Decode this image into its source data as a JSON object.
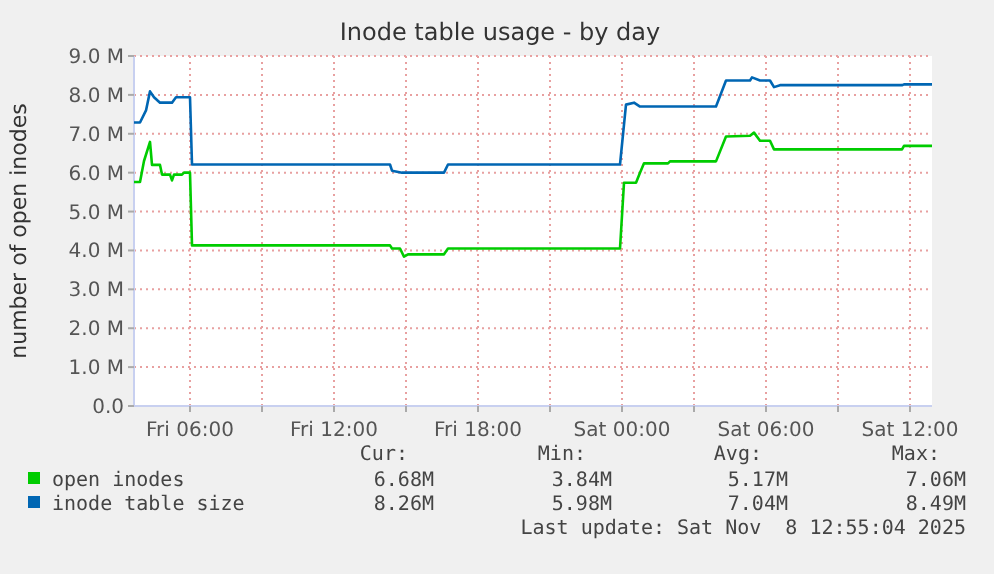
{
  "chart_data": {
    "type": "line",
    "title": "Inode table usage - by day",
    "ylabel": "number of open inodes",
    "xlim": [
      "2025-11-07T03:40",
      "2025-11-08T12:55"
    ],
    "ylim": [
      0,
      9
    ],
    "xticks": [
      {
        "value": "2025-11-07T06:00",
        "label": "Fri 06:00"
      },
      {
        "value": "2025-11-07T09:00",
        "label": null
      },
      {
        "value": "2025-11-07T12:00",
        "label": "Fri 12:00"
      },
      {
        "value": "2025-11-07T15:00",
        "label": null
      },
      {
        "value": "2025-11-07T18:00",
        "label": "Fri 18:00"
      },
      {
        "value": "2025-11-07T21:00",
        "label": null
      },
      {
        "value": "2025-11-08T00:00",
        "label": "Sat 00:00"
      },
      {
        "value": "2025-11-08T03:00",
        "label": null
      },
      {
        "value": "2025-11-08T06:00",
        "label": "Sat 06:00"
      },
      {
        "value": "2025-11-08T09:00",
        "label": null
      },
      {
        "value": "2025-11-08T12:00",
        "label": "Sat 12:00"
      }
    ],
    "yticks": [
      {
        "value": 0,
        "label": "0.0"
      },
      {
        "value": 1,
        "label": "1.0 M"
      },
      {
        "value": 2,
        "label": "2.0 M"
      },
      {
        "value": 3,
        "label": "3.0 M"
      },
      {
        "value": 4,
        "label": "4.0 M"
      },
      {
        "value": 5,
        "label": "5.0 M"
      },
      {
        "value": 6,
        "label": "6.0 M"
      },
      {
        "value": 7,
        "label": "7.0 M"
      },
      {
        "value": 8,
        "label": "8.0 M"
      },
      {
        "value": 9,
        "label": "9.0 M"
      }
    ],
    "grid": true,
    "legend": "bottom",
    "marker": "none",
    "line_style": "solid",
    "series": [
      {
        "name": "open inodes",
        "color": "#00cc00",
        "x": [
          "2025-11-07T03:40",
          "2025-11-07T03:55",
          "2025-11-07T04:05",
          "2025-11-07T04:20",
          "2025-11-07T04:25",
          "2025-11-07T04:45",
          "2025-11-07T04:50",
          "2025-11-07T05:10",
          "2025-11-07T05:15",
          "2025-11-07T05:20",
          "2025-11-07T05:40",
          "2025-11-07T05:45",
          "2025-11-07T06:00",
          "2025-11-07T06:05",
          "2025-11-07T14:20",
          "2025-11-07T14:25",
          "2025-11-07T14:45",
          "2025-11-07T14:55",
          "2025-11-07T15:05",
          "2025-11-07T16:35",
          "2025-11-07T16:45",
          "2025-11-07T23:55",
          "2025-11-08T00:05",
          "2025-11-08T00:35",
          "2025-11-08T00:45",
          "2025-11-08T00:55",
          "2025-11-08T01:55",
          "2025-11-08T02:00",
          "2025-11-08T03:55",
          "2025-11-08T04:20",
          "2025-11-08T05:20",
          "2025-11-08T05:30",
          "2025-11-08T05:45",
          "2025-11-08T06:10",
          "2025-11-08T06:20",
          "2025-11-08T11:40",
          "2025-11-08T11:45",
          "2025-11-08T12:55"
        ],
        "values": [
          5.76,
          5.76,
          6.3,
          6.79,
          6.2,
          6.2,
          5.95,
          5.95,
          5.8,
          5.95,
          5.95,
          6.0,
          6.0,
          4.13,
          4.13,
          4.05,
          4.05,
          3.84,
          3.9,
          3.9,
          4.05,
          4.05,
          5.74,
          5.74,
          6.0,
          6.24,
          6.24,
          6.29,
          6.29,
          6.93,
          6.95,
          7.03,
          6.82,
          6.82,
          6.6,
          6.6,
          6.69,
          6.69
        ]
      },
      {
        "name": "inode table size",
        "color": "#0066b3",
        "x": [
          "2025-11-07T03:40",
          "2025-11-07T03:55",
          "2025-11-07T04:10",
          "2025-11-07T04:20",
          "2025-11-07T04:30",
          "2025-11-07T04:45",
          "2025-11-07T05:15",
          "2025-11-07T05:25",
          "2025-11-07T06:00",
          "2025-11-07T06:05",
          "2025-11-07T14:20",
          "2025-11-07T14:25",
          "2025-11-07T14:50",
          "2025-11-07T15:05",
          "2025-11-07T16:35",
          "2025-11-07T16:45",
          "2025-11-07T23:55",
          "2025-11-08T00:10",
          "2025-11-08T00:30",
          "2025-11-08T00:45",
          "2025-11-08T03:55",
          "2025-11-08T04:20",
          "2025-11-08T05:20",
          "2025-11-08T05:25",
          "2025-11-08T05:45",
          "2025-11-08T06:10",
          "2025-11-08T06:20",
          "2025-11-08T06:35",
          "2025-11-08T11:40",
          "2025-11-08T11:45",
          "2025-11-08T12:55"
        ],
        "values": [
          7.29,
          7.29,
          7.6,
          8.09,
          7.94,
          7.8,
          7.8,
          7.94,
          7.94,
          6.21,
          6.21,
          6.05,
          6.0,
          6.0,
          6.0,
          6.21,
          6.21,
          7.75,
          7.8,
          7.7,
          7.7,
          8.37,
          8.37,
          8.45,
          8.37,
          8.37,
          8.2,
          8.25,
          8.25,
          8.27,
          8.27
        ]
      }
    ],
    "annotations": [
      "Cur:",
      "Min:",
      "Avg:",
      "Max:",
      "6.68M",
      "3.84M",
      "5.17M",
      "7.06M",
      "8.26M",
      "5.98M",
      "7.04M",
      "8.49M",
      "Last update: Sat Nov  8 12:55:04 2025"
    ]
  }
}
